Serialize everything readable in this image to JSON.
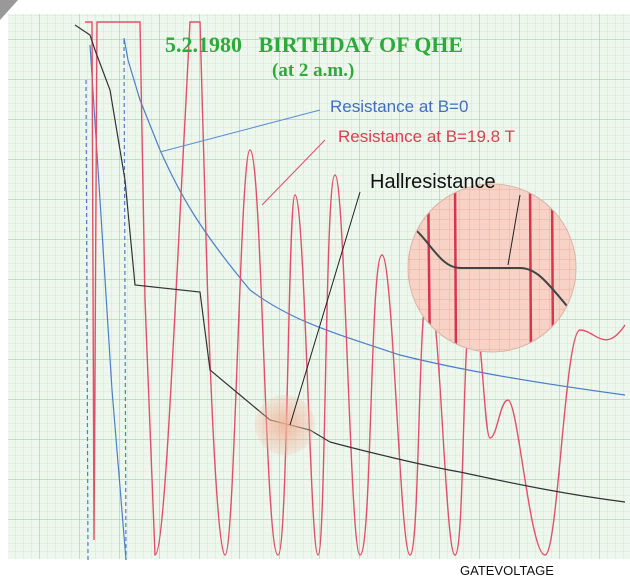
{
  "title": "5.2.1980   BIRTHDAY OF QHE",
  "subtitle": "(at 2 a.m.)",
  "annotations": {
    "b0": "Resistance at B=0",
    "b19": "Resistance at B=19.8 T",
    "hall": "Hallresistance"
  },
  "x_axis_label": "GATEVOLTAGE"
}
